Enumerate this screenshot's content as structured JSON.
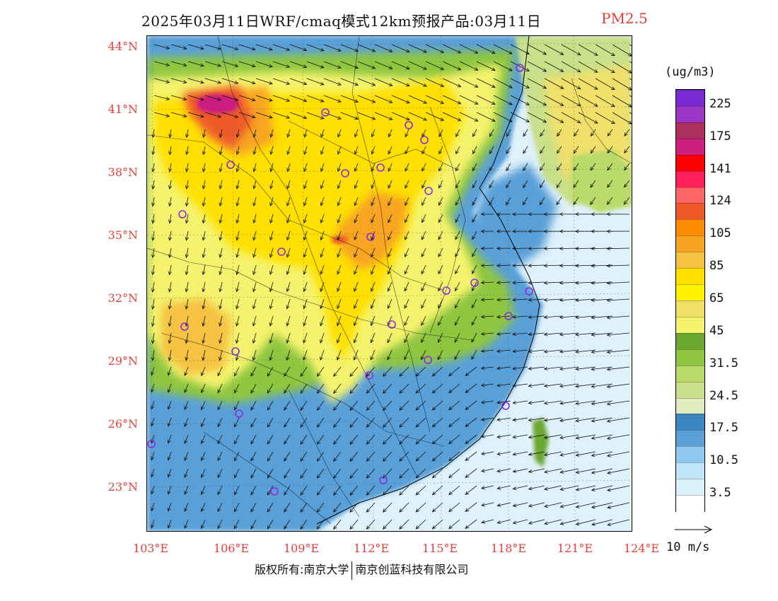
{
  "title": {
    "main": "2025年03月11日WRF/cmaq模式12km预报产品:03月11日",
    "species": "PM2.5"
  },
  "units": "(ug/m3)",
  "colorbar": {
    "labels": [
      "225",
      "175",
      "141",
      "124",
      "105",
      "85",
      "65",
      "45",
      "31.5",
      "24.5",
      "17.5",
      "10.5",
      "3.5"
    ],
    "colors_top_to_bottom": [
      "#7a2bd6",
      "#9b36c9",
      "#ad2f5e",
      "#cc1f80",
      "#ff0000",
      "#ff1f5a",
      "#ff6666",
      "#ee5a2a",
      "#ff8c00",
      "#f7a520",
      "#f5c242",
      "#ffe000",
      "#fff200",
      "#f0e06a",
      "#f5f36d",
      "#6aa832",
      "#8fc640",
      "#bada6a",
      "#c8e08a",
      "#e0ecbe",
      "#3e86c0",
      "#5aa0d8",
      "#8fc8f0",
      "#c0e4f8",
      "#daf0fb",
      "#ffffff"
    ]
  },
  "wind_reference": "10 m/s",
  "lat_labels": [
    "44°N",
    "41°N",
    "38°N",
    "35°N",
    "32°N",
    "29°N",
    "26°N",
    "23°N"
  ],
  "lon_labels": [
    "103°E",
    "106°E",
    "109°E",
    "112°E",
    "115°E",
    "118°E",
    "121°E",
    "124°E"
  ],
  "copyright": {
    "left": "版权所有:南京大学",
    "right": "南京创蓝科技有限公司"
  }
}
